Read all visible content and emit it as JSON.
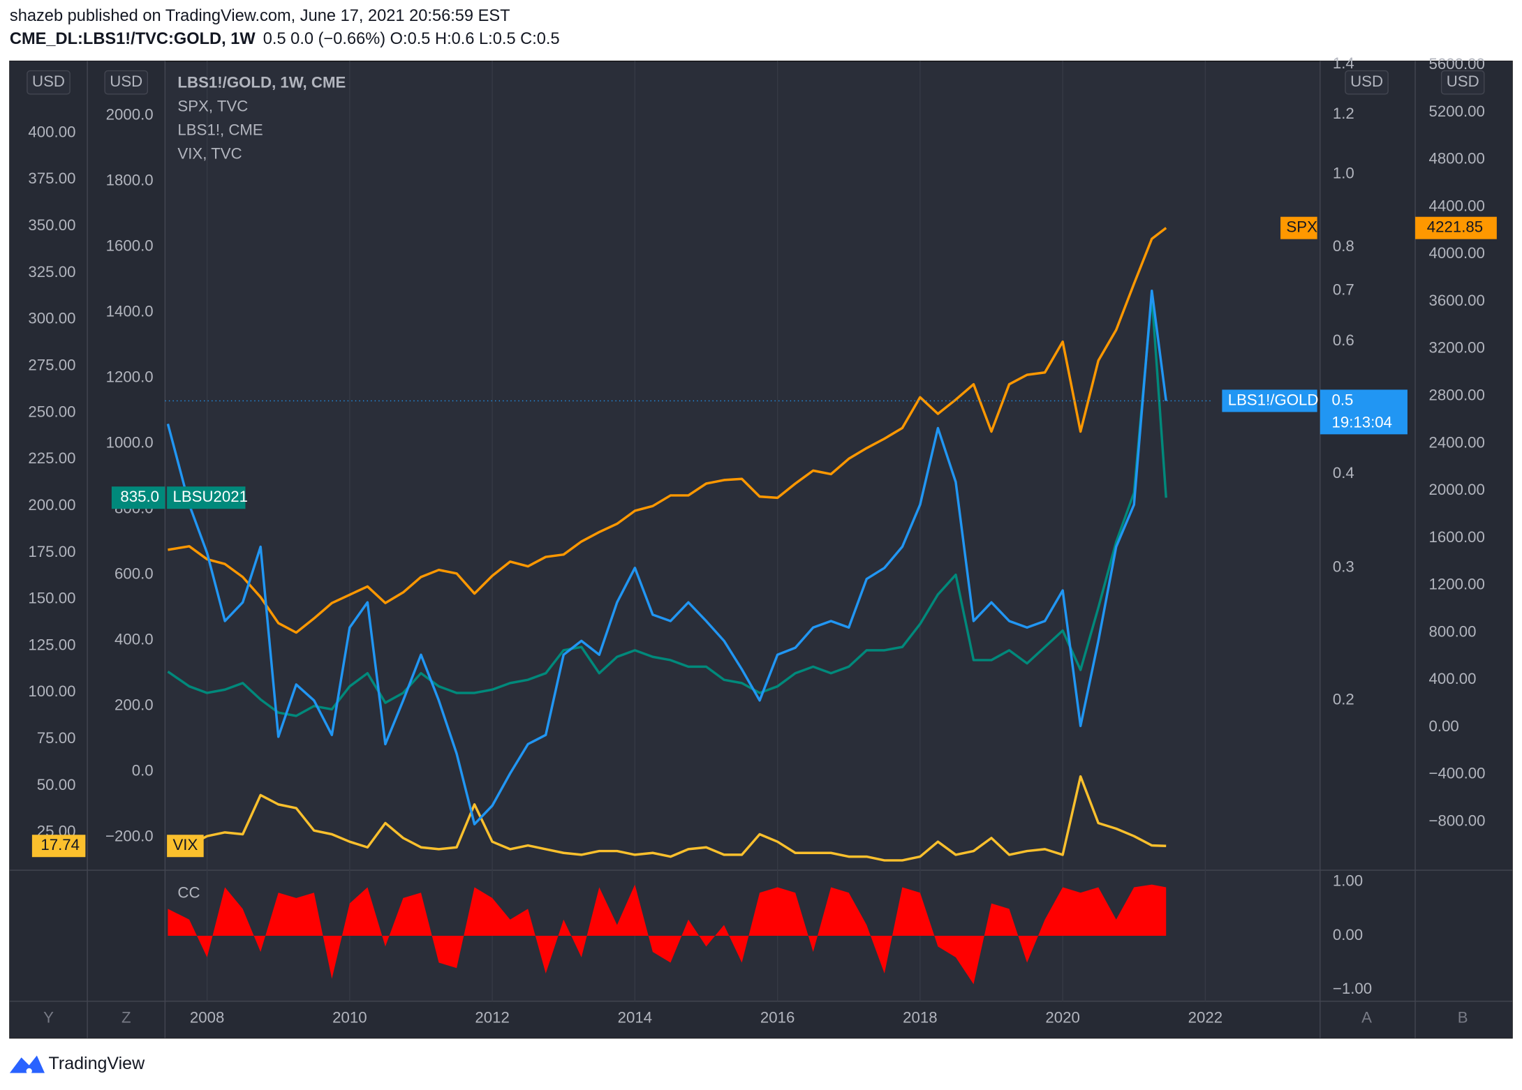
{
  "chart_data": [
    {
      "type": "line",
      "title": "shazeb published on TradingView.com, June 17, 2021 20:56:59 EST",
      "subtitle": "CME_DL:LBS1!/TVC:GOLD, 1W",
      "quote": "0.5 0.0 (−0.66%) O:0.5 H:0.6 L:0.5 C:0.5",
      "footer": "TradingView",
      "grid": true,
      "x": [
        2007.45,
        2007.75,
        2008,
        2008.25,
        2008.5,
        2008.75,
        2009,
        2009.25,
        2009.5,
        2009.75,
        2010,
        2010.25,
        2010.5,
        2010.75,
        2011,
        2011.25,
        2011.5,
        2011.75,
        2012,
        2012.25,
        2012.5,
        2012.75,
        2013,
        2013.25,
        2013.5,
        2013.75,
        2014,
        2014.25,
        2014.5,
        2014.75,
        2015,
        2015.25,
        2015.5,
        2015.75,
        2016,
        2016.25,
        2016.5,
        2016.75,
        2017,
        2017.25,
        2017.5,
        2017.75,
        2018,
        2018.25,
        2018.5,
        2018.75,
        2019,
        2019.25,
        2019.5,
        2019.75,
        2020,
        2020.25,
        2020.5,
        2020.75,
        2021,
        2021.25,
        2021.45
      ],
      "xlim": [
        2007.41,
        2023.61
      ],
      "xticks": [
        2008,
        2010,
        2012,
        2014,
        2016,
        2018,
        2020,
        2022
      ],
      "axes": [
        {
          "name": "Y",
          "unit": "USD",
          "lim": [
            4.7,
            438.5
          ],
          "ticks": [
            {
              "value": 25,
              "label": "25.00"
            },
            {
              "value": 50,
              "label": "50.00"
            },
            {
              "value": 75,
              "label": "75.00"
            },
            {
              "value": 100,
              "label": "100.00"
            },
            {
              "value": 125,
              "label": "125.00"
            },
            {
              "value": 150,
              "label": "150.00"
            },
            {
              "value": 175,
              "label": "175.00"
            },
            {
              "value": 200,
              "label": "200.00"
            },
            {
              "value": 225,
              "label": "225.00"
            },
            {
              "value": 250,
              "label": "250.00"
            },
            {
              "value": 275,
              "label": "275.00"
            },
            {
              "value": 300,
              "label": "300.00"
            },
            {
              "value": 325,
              "label": "325.00"
            },
            {
              "value": 350,
              "label": "350.00"
            },
            {
              "value": 375,
              "label": "375.00"
            },
            {
              "value": 400,
              "label": "400.00"
            }
          ]
        },
        {
          "name": "Z",
          "unit": "USD",
          "lim": [
            -300.5,
            2165.6
          ],
          "ticks": [
            {
              "value": -200,
              "label": "−200.0"
            },
            {
              "value": 0,
              "label": "0.0"
            },
            {
              "value": 200,
              "label": "200.0"
            },
            {
              "value": 400,
              "label": "400.0"
            },
            {
              "value": 600,
              "label": "600.0"
            },
            {
              "value": 800,
              "label": "800.0"
            },
            {
              "value": 1000,
              "label": "1000.0"
            },
            {
              "value": 1200,
              "label": "1200.0"
            },
            {
              "value": 1400,
              "label": "1400.0"
            },
            {
              "value": 1600,
              "label": "1600.0"
            },
            {
              "value": 1800,
              "label": "1800.0"
            },
            {
              "value": 2000,
              "label": "2000.0"
            }
          ]
        },
        {
          "name": "A",
          "unit": "USD",
          "log": true,
          "lim": [
            0.119,
            1.413
          ],
          "ticks": [
            0.2,
            0.3,
            0.4,
            0.5,
            0.6,
            0.7,
            0.8,
            {
              "value": 1,
              "label": "1.0"
            },
            1.2,
            1.4
          ]
        },
        {
          "name": "B",
          "unit": "USD",
          "lim": [
            -1210,
            5632.8
          ],
          "ticks": [
            {
              "value": -800,
              "label": "−800.00"
            },
            {
              "value": -400,
              "label": "−400.00"
            },
            {
              "value": 0,
              "label": "0.00"
            },
            {
              "value": 400,
              "label": "400.00"
            },
            {
              "value": 800,
              "label": "800.00"
            },
            {
              "value": 1200,
              "label": "1200.00"
            },
            {
              "value": 1600,
              "label": "1600.00"
            },
            {
              "value": 2000,
              "label": "2000.00"
            },
            {
              "value": 2400,
              "label": "2400.00"
            },
            {
              "value": 2800,
              "label": "2800.00"
            },
            {
              "value": 3200,
              "label": "3200.00"
            },
            {
              "value": 3600,
              "label": "3600.00"
            },
            {
              "value": 4000,
              "label": "4000.00"
            },
            {
              "value": 4400,
              "label": "4400.00"
            },
            {
              "value": 4800,
              "label": "4800.00"
            },
            {
              "value": 5200,
              "label": "5200.00"
            },
            {
              "value": 5600,
              "label": "5600.00"
            }
          ]
        }
      ],
      "series": [
        {
          "name": "LBS1!/GOLD, 1W, CME",
          "axis": "A",
          "color": "#2196f3",
          "tag": "LBS1!/GOLD",
          "countdown": "19:13:04",
          "values": [
            0.466,
            0.364,
            0.314,
            0.255,
            0.27,
            0.32,
            0.179,
            0.21,
            0.2,
            0.18,
            0.25,
            0.27,
            0.175,
            0.2,
            0.23,
            0.2,
            0.17,
            0.137,
            0.145,
            0.16,
            0.175,
            0.18,
            0.23,
            0.24,
            0.23,
            0.27,
            0.3,
            0.26,
            0.255,
            0.27,
            0.255,
            0.24,
            0.22,
            0.2,
            0.23,
            0.235,
            0.25,
            0.255,
            0.25,
            0.29,
            0.3,
            0.32,
            0.364,
            0.46,
            0.39,
            0.255,
            0.27,
            0.255,
            0.25,
            0.255,
            0.28,
            0.185,
            0.24,
            0.32,
            0.364,
            0.7,
            0.5
          ]
        },
        {
          "name": "SPX, TVC",
          "axis": "B",
          "color": "#ff9800",
          "tag": "SPX",
          "values": [
            1500,
            1530,
            1420,
            1380,
            1270,
            1100,
            880,
            800,
            920,
            1050,
            1120,
            1190,
            1050,
            1140,
            1270,
            1330,
            1300,
            1130,
            1280,
            1400,
            1360,
            1440,
            1460,
            1570,
            1650,
            1720,
            1830,
            1870,
            1960,
            1960,
            2060,
            2090,
            2100,
            1950,
            1940,
            2060,
            2170,
            2140,
            2270,
            2360,
            2440,
            2530,
            2790,
            2650,
            2770,
            2900,
            2500,
            2900,
            2980,
            3000,
            3260,
            2500,
            3100,
            3360,
            3750,
            4130,
            4221.85
          ]
        },
        {
          "name": "LBS1!, CME",
          "axis": "Z",
          "color": "#00897b",
          "tag": "LBSU2021",
          "values": [
            305,
            260,
            240,
            250,
            270,
            220,
            180,
            170,
            200,
            190,
            260,
            300,
            210,
            240,
            300,
            260,
            240,
            240,
            250,
            270,
            280,
            300,
            370,
            380,
            300,
            350,
            370,
            350,
            340,
            320,
            320,
            280,
            270,
            240,
            260,
            300,
            320,
            300,
            320,
            370,
            370,
            380,
            450,
            540,
            600,
            340,
            340,
            370,
            330,
            380,
            430,
            310,
            500,
            700,
            850,
            1450,
            835
          ],
          "value_labels": [
            null,
            null,
            null,
            null,
            null,
            null,
            null,
            null,
            null,
            null,
            null,
            null,
            null,
            null,
            null,
            null,
            null,
            null,
            null,
            null,
            null,
            null,
            null,
            null,
            null,
            null,
            null,
            null,
            null,
            null,
            null,
            null,
            null,
            null,
            null,
            null,
            null,
            null,
            null,
            null,
            null,
            null,
            null,
            null,
            null,
            null,
            null,
            null,
            null,
            null,
            null,
            null,
            null,
            null,
            null,
            null,
            "835.0"
          ]
        },
        {
          "name": "VIX, TVC",
          "axis": "Y",
          "color": "#fbc02d",
          "tag": "VIX",
          "values": [
            15,
            18,
            23,
            25,
            24,
            45,
            40,
            38,
            26,
            24,
            20,
            17,
            30,
            22,
            17,
            16,
            17,
            40,
            20,
            16,
            18,
            16,
            14,
            13,
            15,
            15,
            13,
            14,
            12,
            16,
            17,
            13,
            13,
            24,
            20,
            14,
            14,
            14,
            12,
            12,
            10,
            10,
            12,
            20,
            13,
            15,
            22,
            13,
            15,
            16,
            13,
            55,
            30,
            27,
            23,
            18,
            17.74
          ]
        }
      ]
    },
    {
      "type": "area",
      "title": "CC",
      "x": [
        2007.45,
        2007.75,
        2008,
        2008.25,
        2008.5,
        2008.75,
        2009,
        2009.25,
        2009.5,
        2009.75,
        2010,
        2010.25,
        2010.5,
        2010.75,
        2011,
        2011.25,
        2011.5,
        2011.75,
        2012,
        2012.25,
        2012.5,
        2012.75,
        2013,
        2013.25,
        2013.5,
        2013.75,
        2014,
        2014.25,
        2014.5,
        2014.75,
        2015,
        2015.25,
        2015.5,
        2015.75,
        2016,
        2016.25,
        2016.5,
        2016.75,
        2017,
        2017.25,
        2017.5,
        2017.75,
        2018,
        2018.25,
        2018.5,
        2018.75,
        2019,
        2019.25,
        2019.5,
        2019.75,
        2020,
        2020.25,
        2020.5,
        2020.75,
        2021,
        2021.25,
        2021.45
      ],
      "color": "#ff0000",
      "values": [
        0.5,
        0.3,
        -0.4,
        0.9,
        0.5,
        -0.3,
        0.8,
        0.7,
        0.8,
        -0.8,
        0.6,
        0.9,
        -0.2,
        0.7,
        0.8,
        -0.5,
        -0.6,
        0.9,
        0.7,
        0.3,
        0.5,
        -0.7,
        0.3,
        -0.4,
        0.9,
        0.2,
        0.95,
        -0.3,
        -0.5,
        0.3,
        -0.2,
        0.2,
        -0.5,
        0.8,
        0.9,
        0.8,
        -0.3,
        0.9,
        0.8,
        0.2,
        -0.7,
        0.9,
        0.8,
        -0.2,
        -0.4,
        -0.9,
        0.6,
        0.5,
        -0.5,
        0.3,
        0.9,
        0.8,
        0.9,
        0.3,
        0.9,
        0.95,
        0.9
      ],
      "ylim": [
        -1.216,
        1.216
      ],
      "yticks": [
        {
          "value": -1,
          "label": "−1.00"
        },
        {
          "value": 0,
          "label": "0.00"
        },
        {
          "value": 1,
          "label": "1.00"
        }
      ]
    }
  ]
}
